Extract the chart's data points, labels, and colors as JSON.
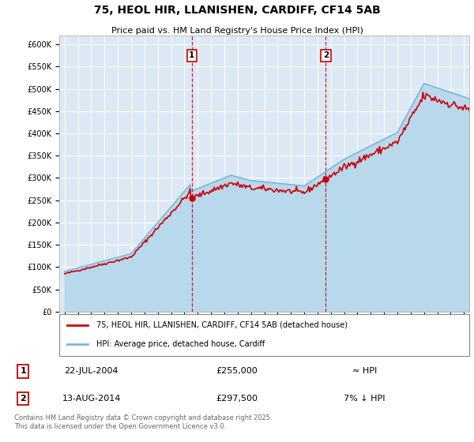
{
  "title": "75, HEOL HIR, LLANISHEN, CARDIFF, CF14 5AB",
  "subtitle": "Price paid vs. HM Land Registry's House Price Index (HPI)",
  "red_label": "75, HEOL HIR, LLANISHEN, CARDIFF, CF14 5AB (detached house)",
  "blue_label": "HPI: Average price, detached house, Cardiff",
  "annotation1_date": "22-JUL-2004",
  "annotation1_price": 255000,
  "annotation1_text": "≈ HPI",
  "annotation2_date": "13-AUG-2014",
  "annotation2_price": 297500,
  "annotation2_text": "7% ↓ HPI",
  "copyright_text": "Contains HM Land Registry data © Crown copyright and database right 2025.\nThis data is licensed under the Open Government Licence v3.0.",
  "background_color": "#dce9f5",
  "red_color": "#cc0000",
  "blue_color": "#7ab8d9",
  "blue_fill_color": "#b8d8ec",
  "ylim_min": 0,
  "ylim_max": 620000,
  "x_start_year": 1995,
  "x_end_year": 2025
}
